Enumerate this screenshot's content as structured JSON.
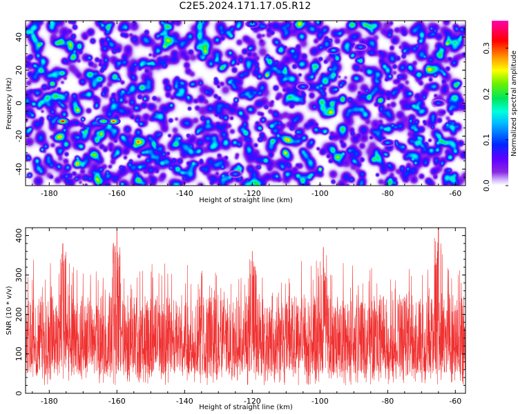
{
  "title": "C2E5.2024.171.17.05.R12",
  "chart_data": [
    {
      "type": "heatmap",
      "xlabel": "Height of straight line (km)",
      "ylabel": "Frequency (Hz)",
      "xlim": [
        -187,
        -57
      ],
      "ylim": [
        -50,
        50
      ],
      "xticks": [
        -180,
        -160,
        -140,
        -120,
        -100,
        -80,
        -60
      ],
      "yticks": [
        -40,
        -20,
        0,
        20,
        40
      ],
      "colorbar": {
        "label": "Normalized spectral amplitude",
        "range": [
          0.0,
          0.36
        ],
        "ticks": [
          0.0,
          0.1,
          0.2,
          0.3
        ],
        "colormap": "rainbow (white-violet-blue-cyan-green-yellow-orange-red-magenta)"
      },
      "features": [
        {
          "x": -176,
          "y": -11,
          "value": 0.32
        },
        {
          "x": -161,
          "y": -11,
          "value": 0.3
        },
        {
          "x": -164,
          "y": -11,
          "value": 0.22
        },
        {
          "x": -96,
          "y": 32,
          "value": 0.14
        },
        {
          "x": -88,
          "y": 34,
          "value": 0.12
        },
        {
          "x": -120,
          "y": 48,
          "value": 0.15
        },
        {
          "x": -80,
          "y": -24,
          "value": 0.13
        },
        {
          "x": -105,
          "y": 10,
          "value": 0.12
        },
        {
          "x": -65,
          "y": 0,
          "value": 0.11
        },
        {
          "x": -125,
          "y": -43,
          "value": 0.12
        }
      ]
    },
    {
      "type": "line",
      "xlabel": "Height of straight line (km)",
      "ylabel": "SNR (10 * v/v)",
      "xlim": [
        -187,
        -57
      ],
      "ylim": [
        0,
        420
      ],
      "xticks": [
        -180,
        -160,
        -140,
        -120,
        -100,
        -80,
        -60
      ],
      "yticks": [
        0,
        100,
        200,
        300,
        400
      ],
      "color": "#f03030",
      "series_summary": {
        "median": 130,
        "typical_range": [
          50,
          250
        ],
        "peaks": [
          {
            "x": -160,
            "y": 410
          },
          {
            "x": -65,
            "y": 420
          },
          {
            "x": -176,
            "y": 380
          },
          {
            "x": -99,
            "y": 370
          },
          {
            "x": -120,
            "y": 360
          }
        ]
      }
    }
  ]
}
